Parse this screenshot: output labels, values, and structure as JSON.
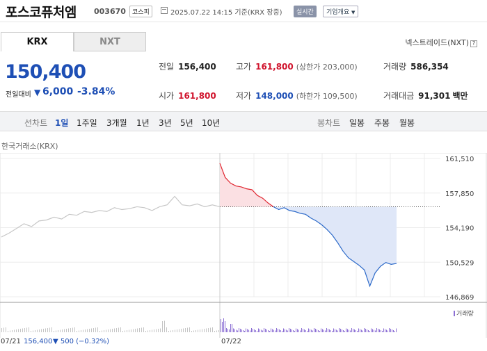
{
  "header": {
    "name": "포스코퓨처엠",
    "code": "003670",
    "market": "코스피",
    "date": "2025.07.22 14:15 기준(KRX 장중)",
    "realtime": "실시간",
    "corp_info": "기업개요"
  },
  "tabs": [
    "KRX",
    "NXT"
  ],
  "nxt_link": "넥스트레이드(NXT)",
  "quote": {
    "price": "150,400",
    "change_label": "전일대비",
    "change": "6,000",
    "change_pct": "-3.84%"
  },
  "stats": {
    "prev_label": "전일",
    "prev": "156,400",
    "high_label": "고가",
    "high": "161,800",
    "high_limit": "(상한가 203,000)",
    "volume_label": "거래량",
    "volume": "586,354",
    "open_label": "시가",
    "open": "161,800",
    "low_label": "저가",
    "low": "148,000",
    "low_limit": "(하한가 109,500)",
    "amount_label": "거래대금",
    "amount": "91,301",
    "amount_unit": "백만"
  },
  "periods": {
    "label": "선차트",
    "items": [
      "1일",
      "1주일",
      "3개월",
      "1년",
      "3년",
      "5년",
      "10년"
    ],
    "selected": "1일",
    "candle_label": "봉차트",
    "candle_items": [
      "일봉",
      "주봉",
      "월봉"
    ]
  },
  "chart_source": "한국거래소(KRX)",
  "volume_label": "거래량",
  "footer": {
    "prev_date": "07/21",
    "prev_close": "156,400",
    "prev_change": "▼ 500 (−0.32%)",
    "today_date": "07/22"
  },
  "chart_data": {
    "type": "line",
    "y_ticks": [
      "161,510",
      "157,850",
      "154,190",
      "150,529",
      "146,869"
    ],
    "ylim": [
      146869,
      161510
    ],
    "x_ticks": [
      "10:00",
      "11:00",
      "12:00",
      "13:00",
      "14:00",
      "15:00"
    ],
    "prev_close_line": 156400,
    "prev_day_series": {
      "values": [
        153200,
        153600,
        154100,
        154600,
        154300,
        154900,
        155000,
        155300,
        155100,
        155600,
        155500,
        155900,
        155800,
        156000,
        155900,
        156300,
        156100,
        156200,
        156400,
        156300,
        156000,
        156400,
        156600,
        157500,
        156600,
        156500,
        156700,
        156400,
        156600,
        156400
      ]
    },
    "today_series": {
      "values": [
        161000,
        159500,
        158900,
        158600,
        158500,
        158300,
        158200,
        157600,
        157300,
        156800,
        156400,
        156100,
        156300,
        156000,
        155900,
        155700,
        155600,
        155200,
        154900,
        154500,
        154000,
        153400,
        152600,
        151700,
        151000,
        150600,
        150200,
        149700,
        148000,
        149400,
        150100,
        150500,
        150300,
        150400
      ]
    },
    "colors": {
      "up": "#e0252f",
      "down": "#2d6ac9",
      "prev": "#c7c7c7",
      "fill_down": "#dfe7f8",
      "fill_up": "#fbe0e3",
      "volume": "#8c6fd4"
    }
  }
}
